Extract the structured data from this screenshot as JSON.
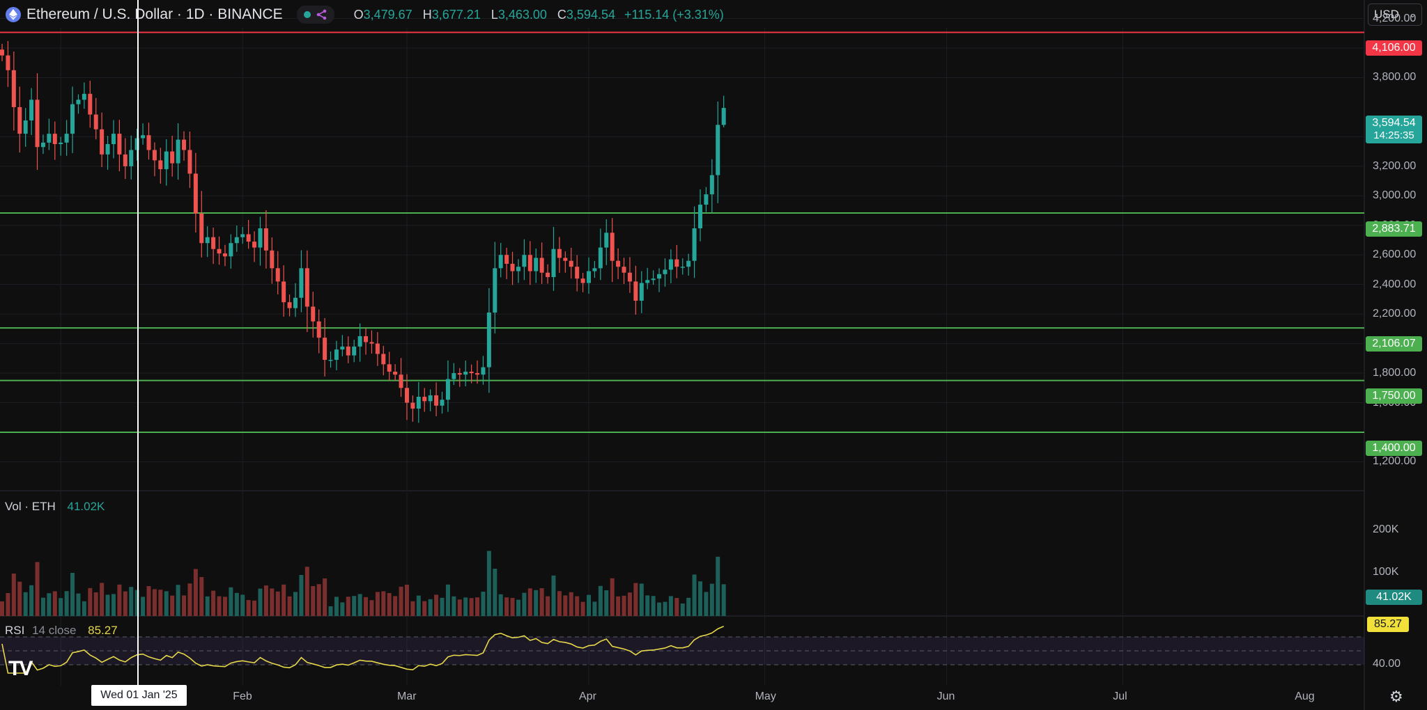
{
  "header": {
    "symbol": "Ethereum / U.S. Dollar · 1D · BINANCE",
    "ohlc": {
      "o_label": "O",
      "o": "3,479.67",
      "h_label": "H",
      "h": "3,677.21",
      "l_label": "L",
      "l": "3,463.00",
      "c_label": "C",
      "c": "3,594.54",
      "change": "+115.14 (+3.31%)"
    }
  },
  "currency": "USD",
  "price_axis": [
    "4,200.00",
    "4,000.00",
    "3,800.00",
    "3,400.00",
    "3,200.00",
    "3,000.00",
    "2,800.00",
    "2,600.00",
    "2,400.00",
    "2,200.00",
    "2,000.00",
    "1,800.00",
    "1,600.00",
    "1,200.00"
  ],
  "tags": {
    "r1": "4,106.00",
    "last": "3,594.54",
    "countdown": "14:25:35",
    "s1": "2,883.71",
    "s2": "2,106.07",
    "s3": "1,750.00",
    "s4": "1,400.00",
    "vol": "41.02K",
    "rsi": "85.27"
  },
  "volume": {
    "label": "Vol · ETH",
    "value": "41.02K",
    "axis": [
      "200K",
      "100K"
    ]
  },
  "rsi": {
    "label": "RSI",
    "params": "14 close",
    "value": "85.27",
    "axis": "40.00"
  },
  "x_axis": [
    "Feb",
    "Mar",
    "Apr",
    "May",
    "Jun",
    "Jul",
    "Aug"
  ],
  "crosshair_date": "Wed 01 Jan '25",
  "colors": {
    "up": "#26a69a",
    "down": "#ef5350",
    "resistance": "#f23645",
    "support": "#4caf50",
    "rsi": "#e6d84a"
  },
  "chart_data": {
    "type": "candlestick",
    "period": "1D",
    "start": "2024-12-22",
    "closes": [
      3950,
      3850,
      3600,
      3420,
      3510,
      3650,
      3330,
      3360,
      3420,
      3350,
      3360,
      3420,
      3620,
      3650,
      3690,
      3550,
      3450,
      3280,
      3350,
      3420,
      3280,
      3200,
      3310,
      3390,
      3410,
      3310,
      3240,
      3180,
      3300,
      3220,
      3380,
      3310,
      3150,
      2880,
      2680,
      2720,
      2640,
      2610,
      2590,
      2680,
      2720,
      2740,
      2690,
      2650,
      2780,
      2630,
      2510,
      2420,
      2280,
      2240,
      2310,
      2510,
      2250,
      2150,
      2040,
      1890,
      1890,
      1960,
      1980,
      1920,
      1980,
      2050,
      2010,
      2000,
      1930,
      1860,
      1810,
      1790,
      1700,
      1600,
      1560,
      1640,
      1610,
      1650,
      1580,
      1620,
      1760,
      1800,
      1790,
      1810,
      1800,
      1790,
      1840,
      2210,
      2510,
      2600,
      2540,
      2490,
      2520,
      2600,
      2490,
      2580,
      2480,
      2450,
      2640,
      2580,
      2560,
      2520,
      2440,
      2410,
      2490,
      2510,
      2650,
      2750,
      2560,
      2520,
      2480,
      2420,
      2290,
      2410,
      2430,
      2440,
      2470,
      2500,
      2570,
      2520,
      2520,
      2560,
      2780,
      2940,
      3010,
      3140,
      3480,
      3594.54
    ],
    "resistance_levels": [
      4106.0
    ],
    "support_levels": [
      2883.71,
      2106.07,
      1750.0,
      1400.0
    ],
    "last_price": 3594.54,
    "volume_last": "41.02K",
    "rsi_last": 85.27,
    "rsi_bands": [
      70,
      50,
      30
    ]
  }
}
